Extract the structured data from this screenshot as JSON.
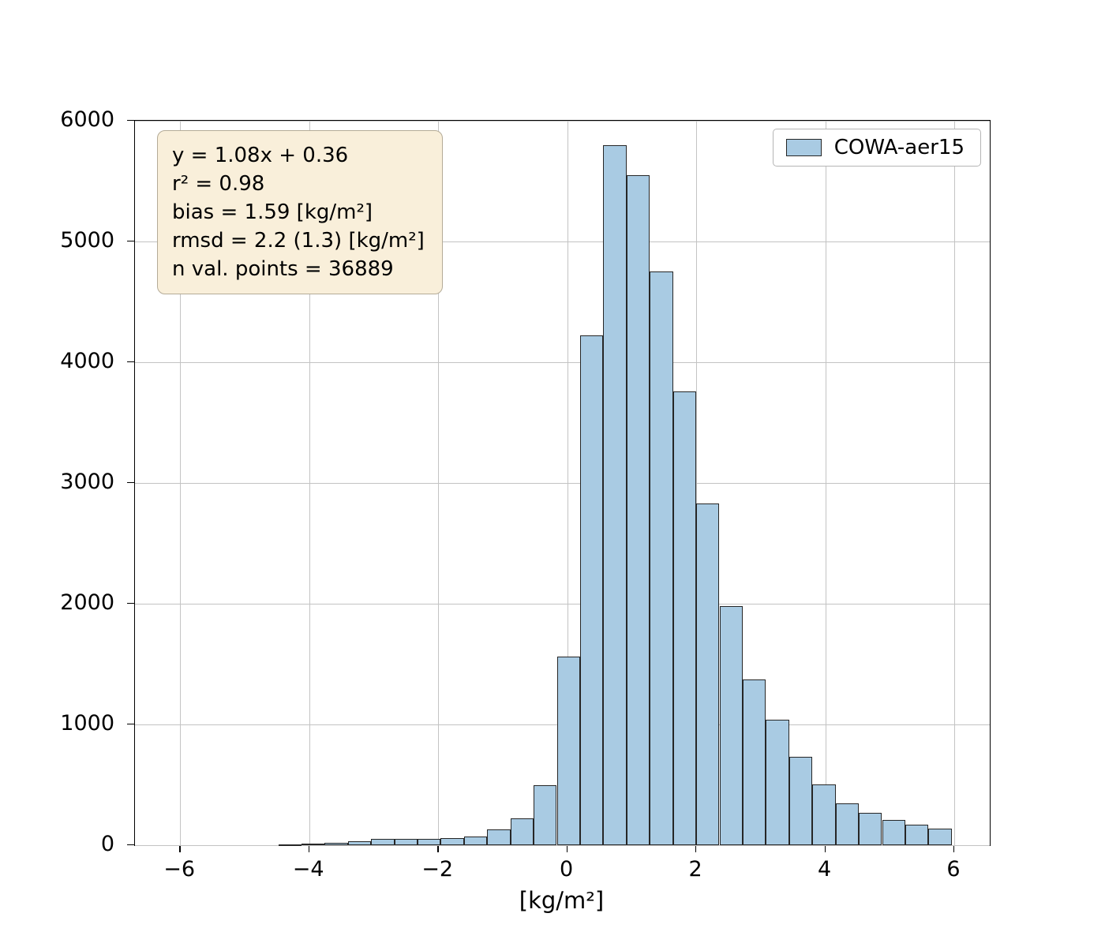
{
  "chart_data": {
    "type": "bar",
    "subtype": "histogram",
    "title": "",
    "xlabel": "[kg/m²]",
    "ylabel": "",
    "xlim": [
      -6.7,
      6.55
    ],
    "ylim": [
      0,
      6000
    ],
    "grid": true,
    "xticks": {
      "values": [
        -6,
        -4,
        -2,
        0,
        2,
        4,
        6
      ],
      "labels": [
        "−6",
        "−4",
        "−2",
        "0",
        "2",
        "4",
        "6"
      ]
    },
    "yticks": {
      "values": [
        0,
        1000,
        2000,
        3000,
        4000,
        5000,
        6000
      ],
      "labels": [
        "0",
        "1000",
        "2000",
        "3000",
        "4000",
        "5000",
        "6000"
      ]
    },
    "series": [
      {
        "name": "COWA-aer15",
        "bin_start": -4.48,
        "bin_width": 0.36,
        "values": [
          8,
          12,
          22,
          35,
          50,
          55,
          52,
          60,
          75,
          130,
          225,
          500,
          1560,
          4220,
          5800,
          5550,
          4750,
          3760,
          2830,
          1980,
          1370,
          1040,
          730,
          505,
          350,
          270,
          210,
          170,
          140
        ],
        "fill": "#a9cbe3",
        "edge": "#262626"
      }
    ],
    "legend": {
      "position": "upper right",
      "entries": [
        {
          "label": "COWA-aer15",
          "fill": "#a9cbe3",
          "edge": "#262626"
        }
      ]
    },
    "annotation_box": {
      "lines": [
        "y = 1.08x + 0.36",
        "r² = 0.98",
        "bias = 1.59 [kg/m²]",
        "rmsd = 2.2 (1.3) [kg/m²]",
        "n val. points = 36889"
      ],
      "bg": "#f9efda",
      "border": "#b4ab97"
    },
    "colors": {
      "grid": "#c3c3c3",
      "axis": "#000000",
      "background": "#ffffff"
    }
  }
}
